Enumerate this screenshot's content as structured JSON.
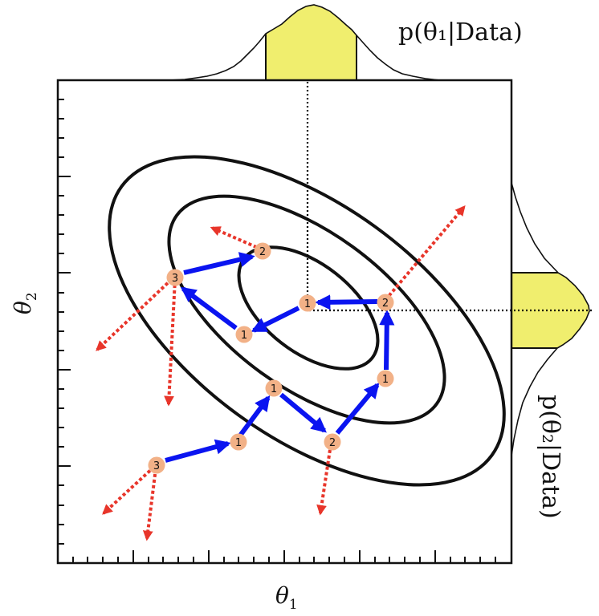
{
  "labels": {
    "x_axis": "θ",
    "x_axis_sub": "1",
    "y_axis": "θ",
    "y_axis_sub": "2",
    "top_marginal": "p(θ₁|Data)",
    "right_marginal": "p(θ₂|Data)"
  },
  "step_numbers": [
    "1",
    "2",
    "3"
  ],
  "colors": {
    "contour": "#111111",
    "accepted_arrow": "#0a14f0",
    "rejected_arrow": "#e8352a",
    "node_fill": "#f2b187",
    "marginal_fill": "#f0ee6e",
    "guide_line": "#000000"
  }
}
